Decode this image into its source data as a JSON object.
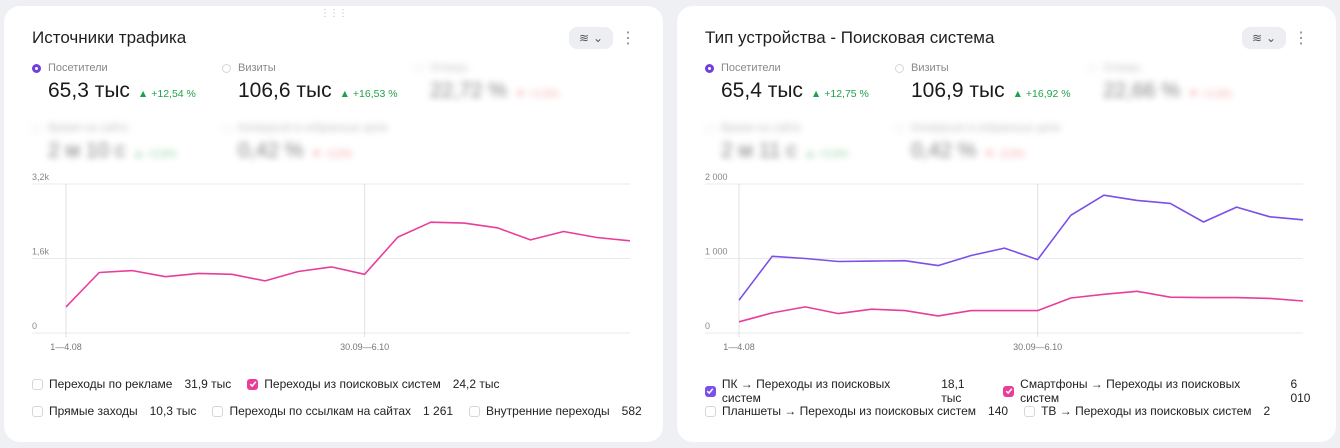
{
  "card1": {
    "title": "Источники трафика",
    "metrics": [
      {
        "label": "Посетители",
        "value": "65,3 тыс",
        "delta": "▲ +12,54 %",
        "selected": true
      },
      {
        "label": "Визиты",
        "value": "106,6 тыс",
        "delta": "▲ +16,53 %",
        "selected": false
      }
    ],
    "blurred_metrics": [
      {
        "label": "Отказы",
        "value": "22,72 %",
        "delta": "▼ +1,5%"
      },
      {
        "label": "Время на сайте",
        "value": "2 м 10 с",
        "delta": "▲ +3,8%"
      },
      {
        "label": "Конверсия в избранные цели",
        "value": "0,42 %",
        "delta": "▼ -3,5%"
      }
    ],
    "chart_data": {
      "type": "line",
      "y_ticks": [
        "3,2k",
        "1,6k",
        "0"
      ],
      "ylim": [
        0,
        3200
      ],
      "x_tick_labels": [
        "1—4.08",
        "30.09—6.10"
      ],
      "series": [
        {
          "name": "Переходы из поисковых систем",
          "color": "#e83e9a",
          "values": [
            560,
            1300,
            1340,
            1210,
            1280,
            1260,
            1120,
            1320,
            1420,
            1260,
            2060,
            2380,
            2360,
            2260,
            2000,
            2180,
            2050,
            1980
          ]
        }
      ]
    },
    "legend": [
      [
        {
          "label": "Переходы по рекламе",
          "value": "31,9 тыс",
          "checked": false,
          "color": "#e83e9a"
        },
        {
          "label": "Переходы из поисковых систем",
          "value": "24,2 тыс",
          "checked": true,
          "color": "#e83e9a"
        }
      ],
      [
        {
          "label": "Прямые заходы",
          "value": "10,3 тыс",
          "checked": false,
          "color": "#e83e9a"
        },
        {
          "label": "Переходы по ссылкам на сайтах",
          "value": "1 261",
          "checked": false,
          "color": "#e83e9a"
        },
        {
          "label": "Внутренние переходы",
          "value": "582",
          "checked": false,
          "color": "#e83e9a"
        }
      ]
    ]
  },
  "card2": {
    "title": "Тип устройства - Поисковая система",
    "metrics": [
      {
        "label": "Посетители",
        "value": "65,4 тыс",
        "delta": "▲ +12,75 %",
        "selected": true
      },
      {
        "label": "Визиты",
        "value": "106,9 тыс",
        "delta": "▲ +16,92 %",
        "selected": false
      }
    ],
    "blurred_metrics": [
      {
        "label": "Отказы",
        "value": "22,66 %",
        "delta": "▼ +1,6%"
      },
      {
        "label": "Время на сайте",
        "value": "2 м 11 с",
        "delta": "▲ +3,9%"
      },
      {
        "label": "Конверсия в избранные цели",
        "value": "0,42 %",
        "delta": "▼ -3,5%"
      }
    ],
    "chart_data": {
      "type": "line",
      "y_ticks": [
        "2 000",
        "1 000",
        "0"
      ],
      "ylim": [
        0,
        2000
      ],
      "x_tick_labels": [
        "1—4.08",
        "30.09—6.10"
      ],
      "series": [
        {
          "name": "ПК → Переходы из поисковых систем",
          "color": "#7b4fe8",
          "values": [
            440,
            1030,
            1000,
            960,
            965,
            970,
            905,
            1040,
            1140,
            985,
            1580,
            1850,
            1780,
            1740,
            1490,
            1690,
            1560,
            1520
          ]
        },
        {
          "name": "Смартфоны → Переходы из поисковых систем",
          "color": "#e83e9a",
          "values": [
            150,
            270,
            350,
            260,
            320,
            300,
            230,
            300,
            300,
            300,
            470,
            520,
            560,
            480,
            475,
            475,
            465,
            430
          ]
        }
      ]
    },
    "legend": [
      [
        {
          "label": "ПК → Переходы из поисковых систем",
          "value": "18,1 тыс",
          "checked": true,
          "color": "#7b4fe8"
        },
        {
          "label": "Смартфоны → Переходы из поисковых систем",
          "value": "6 010",
          "checked": true,
          "color": "#e83e9a"
        }
      ],
      [
        {
          "label": "Планшеты → Переходы из поисковых систем",
          "value": "140",
          "checked": false,
          "color": "#e83e9a"
        },
        {
          "label": "ТВ → Переходы из поисковых систем",
          "value": "2",
          "checked": false,
          "color": "#e83e9a"
        }
      ]
    ]
  }
}
